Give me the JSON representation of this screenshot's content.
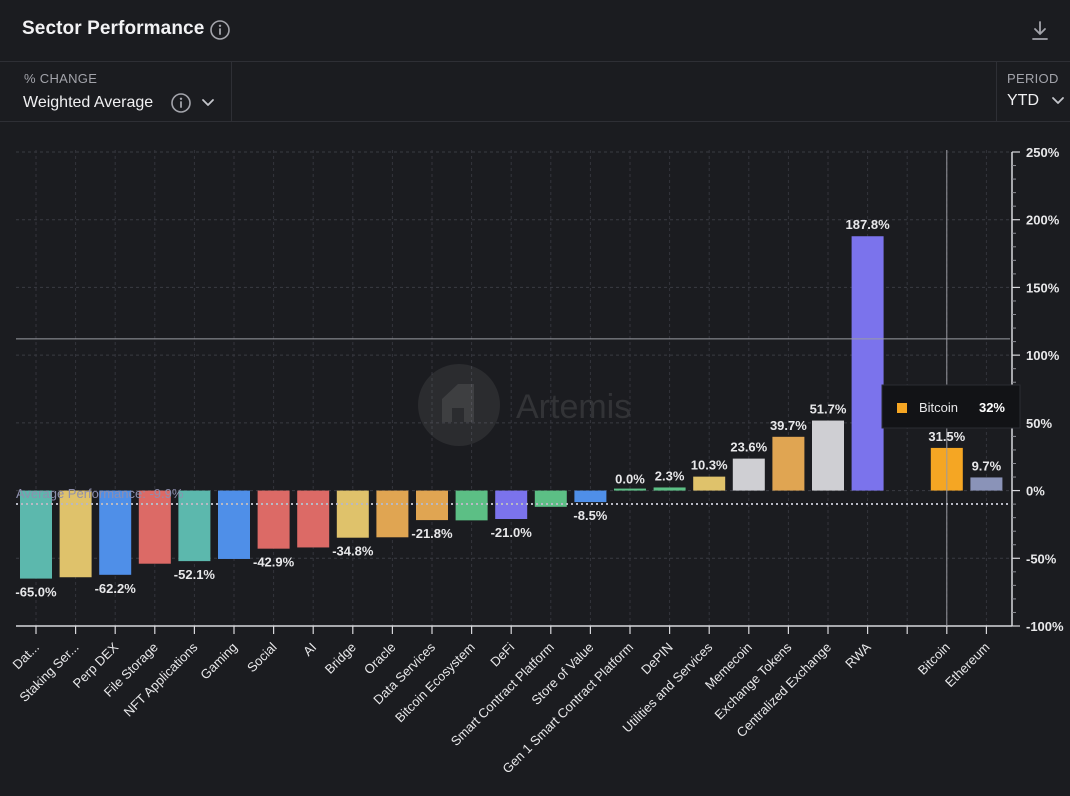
{
  "header": {
    "title": "Sector Performance",
    "download_icon": "download-icon",
    "info_icon": "info-icon"
  },
  "controls": {
    "change_label": "% CHANGE",
    "change_value": "Weighted Average",
    "period_label": "PERIOD",
    "period_value": "YTD"
  },
  "watermark": "Artemis",
  "tooltip": {
    "name": "Bitcoin",
    "value": "32%",
    "color": "#f5a623"
  },
  "colors": {
    "background": "#1b1c20",
    "grid": "#3a3b42",
    "text": "#e8e8ea"
  },
  "chart_data": {
    "type": "bar",
    "title": "Sector Performance",
    "ylim": [
      -100,
      250
    ],
    "yticks": [
      250,
      200,
      150,
      100,
      50,
      0,
      -50,
      -100
    ],
    "ytick_labels": [
      "250%",
      "200%",
      "150%",
      "100%",
      "50%",
      "0%",
      "-50%",
      "-100%"
    ],
    "average": {
      "label": "Average Performance: -9.9%",
      "value": -9.9
    },
    "crosshair_value": 112,
    "categories": [
      "Dat...",
      "Staking Ser...",
      "Perp DEX",
      "File Storage",
      "NFT Applications",
      "Gaming",
      "Social",
      "AI",
      "Bridge",
      "Oracle",
      "Data Services",
      "Bitcoin Ecosystem",
      "DeFi",
      "Smart Contract Platform",
      "Store of Value",
      "Gen 1 Smart Contract Platform",
      "DePIN",
      "Utilities and Services",
      "Memecoin",
      "Exchange Tokens",
      "Centralized Exchange",
      "RWA",
      "",
      "Bitcoin",
      "Ethereum"
    ],
    "values": [
      -65.0,
      -64.0,
      -62.2,
      -54.0,
      -52.1,
      -50.5,
      -42.9,
      -42.0,
      -34.8,
      -34.5,
      -21.8,
      -22.0,
      -21.0,
      -12.0,
      -8.5,
      0.0,
      2.3,
      10.3,
      23.6,
      39.7,
      51.7,
      187.8,
      null,
      31.5,
      9.7
    ],
    "data_labels": [
      "-65.0%",
      "",
      "-62.2%",
      "",
      "-52.1%",
      "",
      "-42.9%",
      "",
      "-34.8%",
      "",
      "-21.8%",
      "",
      "-21.0%",
      "",
      "-8.5%",
      "0.0%",
      "2.3%",
      "10.3%",
      "23.6%",
      "39.7%",
      "51.7%",
      "187.8%",
      "",
      "31.5%",
      "9.7%"
    ],
    "bar_colors": [
      "#5cb8ad",
      "#dfc26b",
      "#4f8fe8",
      "#dc6a66",
      "#5cb8ad",
      "#4f8fe8",
      "#dc6a66",
      "#dc6a66",
      "#dfc26b",
      "#e0a552",
      "#e0a552",
      "#5cbf85",
      "#7b73ec",
      "#5cbf85",
      "#4f8fe8",
      "#5cbf85",
      "#5cbf85",
      "#dfc26b",
      "#cfcfd3",
      "#e0a552",
      "#cfcfd3",
      "#7b73ec",
      "",
      "#f5a623",
      "#8a93b8"
    ]
  }
}
